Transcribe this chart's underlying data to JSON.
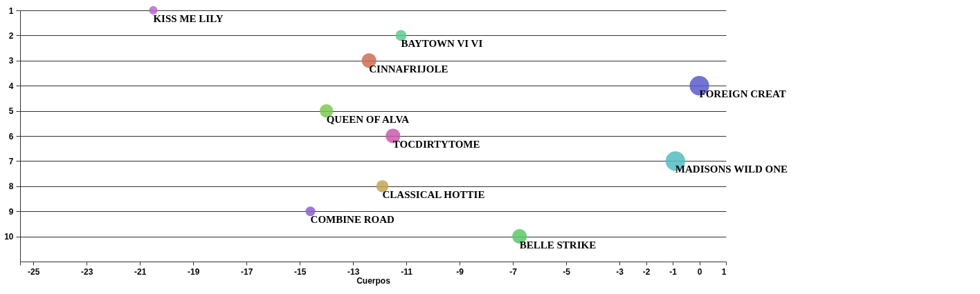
{
  "chart_data": {
    "type": "bubble",
    "xlabel": "Cuerpos",
    "x": [
      -20.5,
      -11.2,
      -12.4,
      0,
      -14,
      -11.5,
      -0.9,
      -11.9,
      -14.6,
      -6.75
    ],
    "values": [
      1,
      2,
      3,
      4,
      5,
      6,
      7,
      8,
      9,
      10
    ],
    "sizes": [
      0.19,
      0.32,
      0.56,
      1,
      0.47,
      0.56,
      1,
      0.39,
      0.25,
      0.56
    ],
    "colors": [
      "#b768d0",
      "#5ecb8f",
      "#cc6f55",
      "#5b5bc9",
      "#7ec850",
      "#c95aac",
      "#54bcc0",
      "#c4a552",
      "#8e5fcf",
      "#5cc86a"
    ],
    "xlim": [
      -25.5,
      1
    ],
    "xticks": [
      {
        "value": -25.5,
        "label": null
      },
      -25,
      -23,
      -21,
      -19,
      -17,
      -15,
      -13,
      -11,
      -9,
      -7,
      -5,
      -3,
      -2,
      -1,
      0,
      1
    ],
    "ylim": [
      11,
      1
    ],
    "yticks": [
      1,
      2,
      3,
      4,
      5,
      6,
      7,
      8,
      9,
      10
    ],
    "grid": "y",
    "annotations": [
      {
        "text": "KISS ME LILY",
        "x": -20.5,
        "y": 1
      },
      {
        "text": "BAYTOWN VI VI",
        "x": -11.2,
        "y": 2
      },
      {
        "text": "CINNAFRIJOLE",
        "x": -12.4,
        "y": 3
      },
      {
        "text": "FOREIGN CREAT",
        "x": 0,
        "y": 4
      },
      {
        "text": "QUEEN OF ALVA",
        "x": -14,
        "y": 5
      },
      {
        "text": "TOCDIRTYTOME",
        "x": -11.5,
        "y": 6
      },
      {
        "text": "MADISONS WILD ONE",
        "x": -0.9,
        "y": 7
      },
      {
        "text": "CLASSICAL HOTTIE",
        "x": -11.9,
        "y": 8
      },
      {
        "text": "COMBINE ROAD",
        "x": -14.6,
        "y": 9
      },
      {
        "text": "BELLE STRIKE",
        "x": -6.75,
        "y": 10
      }
    ]
  }
}
